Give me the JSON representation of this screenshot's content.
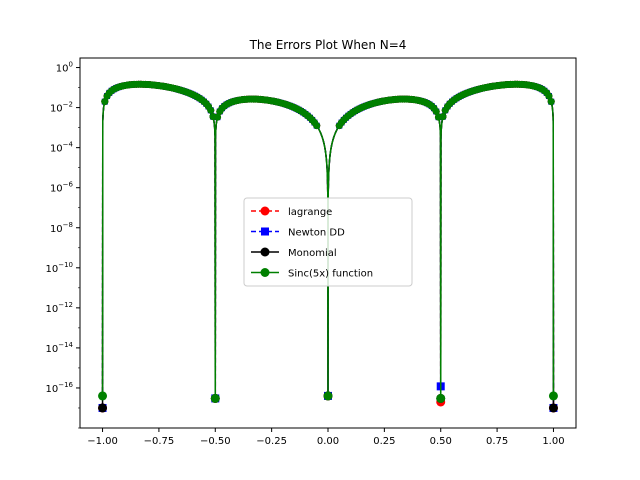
{
  "chart_data": {
    "type": "line",
    "title": "The Errors Plot When N=4",
    "xlabel": "",
    "ylabel": "",
    "yscale": "log",
    "xlim": [
      -1.1,
      1.1
    ],
    "ylim": [
      1e-18,
      3
    ],
    "x_ticks": [
      -1.0,
      -0.75,
      -0.5,
      -0.25,
      0.0,
      0.25,
      0.5,
      0.75,
      1.0
    ],
    "x_tick_labels": [
      "−1.00",
      "−0.75",
      "−0.50",
      "−0.25",
      "0.00",
      "0.25",
      "0.50",
      "0.75",
      "1.00"
    ],
    "y_ticks": [
      1e-16,
      1e-14,
      1e-12,
      1e-10,
      1e-08,
      1e-06,
      0.0001,
      0.01,
      1
    ],
    "y_tick_bases": [
      "10",
      "10",
      "10",
      "10",
      "10",
      "10",
      "10",
      "10",
      "10"
    ],
    "y_tick_exps": [
      "−16",
      "−14",
      "−12",
      "−10",
      "−8",
      "−6",
      "−4",
      "−2",
      "0"
    ],
    "grid": false,
    "legend_placement": "center",
    "nodes": [
      -1.0,
      -0.5,
      0.0,
      0.5,
      1.0
    ],
    "series": [
      {
        "name": "lagrange",
        "color": "#ff0000",
        "linestyle": "dashed",
        "marker": "circle",
        "node_values": [
          1e-17,
          3e-17,
          4e-17,
          2e-17,
          1e-17
        ]
      },
      {
        "name": "Newton DD",
        "color": "#0000ff",
        "linestyle": "dashed",
        "marker": "square",
        "node_values": [
          1e-17,
          3e-17,
          4e-17,
          1.2e-16,
          1e-17
        ]
      },
      {
        "name": "Monomial",
        "color": "#000000",
        "linestyle": "solid",
        "marker": "circle",
        "node_values": [
          1e-17,
          3e-17,
          4e-17,
          3e-17,
          1e-17
        ]
      },
      {
        "name": "Sinc(5x) function",
        "color": "#008000",
        "linestyle": "solid",
        "marker": "circle",
        "node_values": [
          4e-17,
          3e-17,
          4e-17,
          3e-17,
          4e-17
        ]
      }
    ]
  }
}
